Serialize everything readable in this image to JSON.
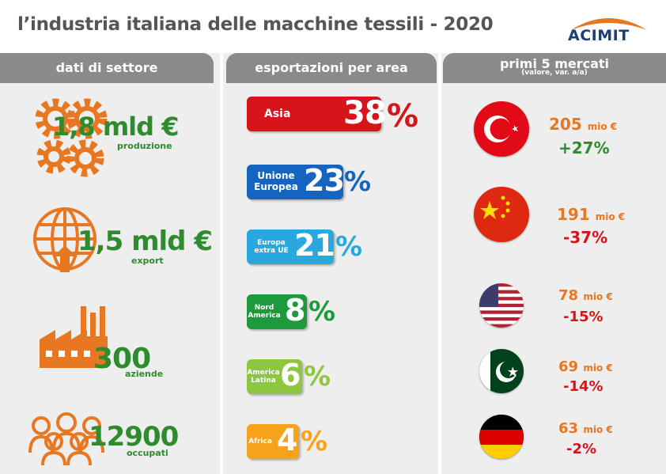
{
  "title": "l’industria italiana delle macchine tessili - 2020",
  "logo": {
    "text": "ACIMIT"
  },
  "colors": {
    "green": "#2e8b2e",
    "orange": "#e87722",
    "red": "#d7141a",
    "blue_dark": "#1565c0",
    "blue_light": "#29a8e0",
    "green_pill": "#1e9a3c",
    "lime": "#8dc63f",
    "amber": "#f7a21b",
    "grey_tab": "#8a8a8a"
  },
  "headers": {
    "dati": "dati di settore",
    "esport": "esportazioni per area",
    "mercati": "primi 5 mercati",
    "mercati_sub": "(valore, var. a/a)"
  },
  "dati": [
    {
      "icon": "gears-icon",
      "value": "1,8 mld €",
      "label": "produzione"
    },
    {
      "icon": "globe-export-icon",
      "value": "1,5 mld €",
      "label": "export"
    },
    {
      "icon": "factory-icon",
      "value": "300",
      "label": "aziende"
    },
    {
      "icon": "people-icon",
      "value": "12900",
      "label": "occupati"
    }
  ],
  "esportazioni": [
    {
      "area": "Asia",
      "value": "38",
      "unit": "%",
      "color": "#d7141a"
    },
    {
      "area": "Unione Europea",
      "value": "23",
      "unit": "%",
      "color": "#1565c0"
    },
    {
      "area": "Europa extra UE",
      "value": "21",
      "unit": "%",
      "color": "#29a8e0"
    },
    {
      "area": "Nord America",
      "value": "8",
      "unit": "%",
      "color": "#1e9a3c"
    },
    {
      "area": "America Latina",
      "value": "6",
      "unit": "%",
      "color": "#8dc63f"
    },
    {
      "area": "Africa",
      "value": "4",
      "unit": "%",
      "color": "#f7a21b"
    }
  ],
  "mercati": [
    {
      "flag": "turkey-flag-icon",
      "value": "205",
      "unit": "mio €",
      "var": "+27%"
    },
    {
      "flag": "china-flag-icon",
      "value": "191",
      "unit": "mio €",
      "var": "-37%"
    },
    {
      "flag": "usa-flag-icon",
      "value": "78",
      "unit": "mio €",
      "var": "-15%"
    },
    {
      "flag": "pakistan-flag-icon",
      "value": "69",
      "unit": "mio €",
      "var": "-14%"
    },
    {
      "flag": "germany-flag-icon",
      "value": "63",
      "unit": "mio €",
      "var": "-2%"
    }
  ]
}
